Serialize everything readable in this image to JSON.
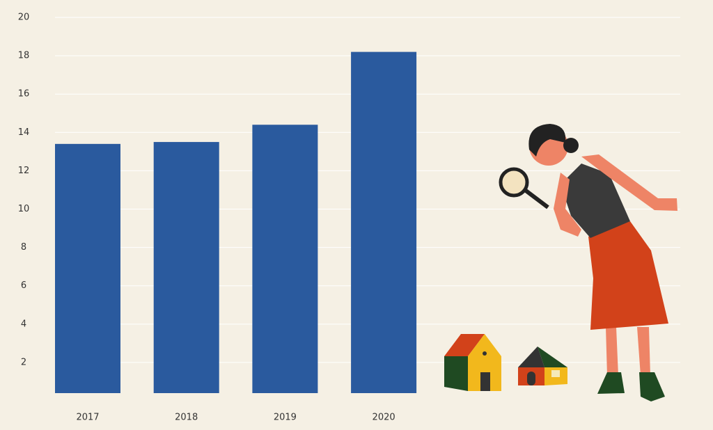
{
  "chart_data": {
    "type": "bar",
    "categories": [
      "2017",
      "2018",
      "2019",
      "2020"
    ],
    "values": [
      13.4,
      13.5,
      14.4,
      18.2
    ],
    "color": "#2a5a9e",
    "ylim": [
      0.4,
      20
    ],
    "yticks": [
      2,
      4,
      6,
      8,
      10,
      12,
      14,
      16,
      18,
      20
    ],
    "grid": true
  }
}
